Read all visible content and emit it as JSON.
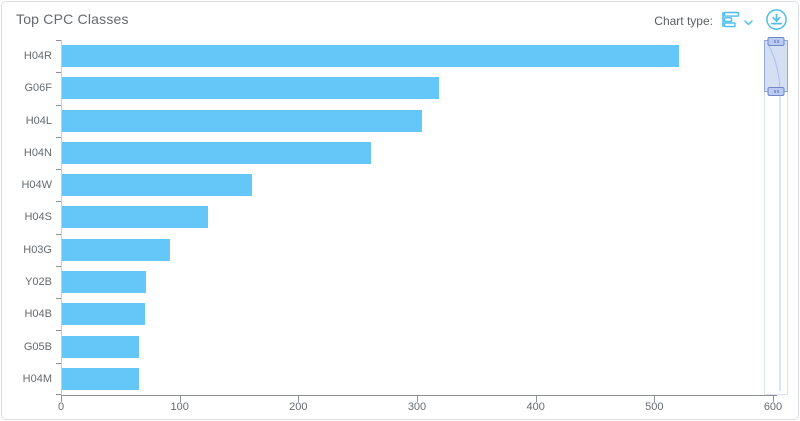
{
  "header": {
    "title": "Top CPC Classes",
    "chart_type_label": "Chart type:",
    "icons": {
      "chart_type": "horizontal-bar-chart-icon",
      "dropdown": "chevron-down-icon",
      "download": "download-icon"
    }
  },
  "colors": {
    "bar": "#64C7F7",
    "icon_blue": "#4FBDEE",
    "axis_line": "#8C8F93",
    "tick_label": "#666A6E",
    "navigator_fill": "#96AEE4",
    "navigator_border": "#92A8DD",
    "title_text": "#66696E"
  },
  "chart_data": {
    "type": "bar",
    "orientation": "horizontal",
    "title": "Top CPC Classes",
    "xlabel": "",
    "ylabel": "",
    "categories": [
      "H04R",
      "G06F",
      "H04L",
      "H04N",
      "H04W",
      "H04S",
      "H03G",
      "Y02B",
      "H04B",
      "G05B",
      "H04M"
    ],
    "values": [
      520,
      318,
      303,
      260,
      160,
      123,
      91,
      71,
      70,
      65,
      65
    ],
    "xlim": [
      0,
      600
    ],
    "x_ticks": [
      0,
      100,
      200,
      300,
      400,
      500,
      600
    ],
    "x_tick_labels": [
      "0",
      "100",
      "200",
      "300",
      "400",
      "500",
      "600"
    ],
    "grid": false,
    "legend": "none",
    "scrollbar": "vertical-right, window at top covering first ~2 categories"
  }
}
